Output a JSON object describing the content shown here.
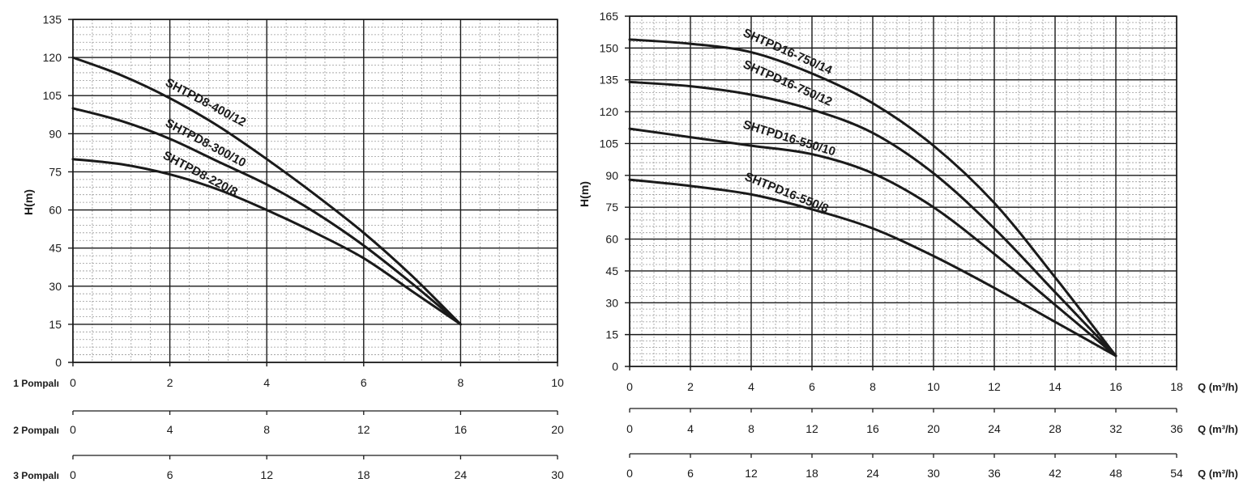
{
  "chart_data": [
    {
      "type": "line",
      "ylabel": "H(m)",
      "ylim": [
        0,
        135
      ],
      "yticks": [
        "0",
        "15",
        "30",
        "45",
        "60",
        "75",
        "90",
        "105",
        "120",
        "135"
      ],
      "xlim": [
        0,
        10
      ],
      "grid": true,
      "flow_axes": [
        {
          "label": "1 Pompalı",
          "ticks": [
            "0",
            "2",
            "4",
            "6",
            "8",
            "10"
          ]
        },
        {
          "label": "2 Pompalı",
          "ticks": [
            "0",
            "4",
            "8",
            "12",
            "16",
            "20"
          ]
        },
        {
          "label": "3 Pompalı",
          "ticks": [
            "0",
            "6",
            "12",
            "18",
            "24",
            "30"
          ]
        }
      ],
      "series": [
        {
          "name": "SHTPD8-400/12",
          "x": [
            0,
            1,
            2,
            3,
            4,
            5,
            6,
            7,
            8
          ],
          "y": [
            120,
            113,
            104,
            93,
            80,
            66,
            51,
            34,
            15
          ]
        },
        {
          "name": "SHTPD8-300/10",
          "x": [
            0,
            1,
            2,
            3,
            4,
            5,
            6,
            7,
            8
          ],
          "y": [
            100,
            95,
            88,
            79,
            70,
            59,
            46,
            31,
            15
          ]
        },
        {
          "name": "SHTPD8-220/8",
          "x": [
            0,
            1,
            2,
            3,
            4,
            5,
            6,
            7,
            8
          ],
          "y": [
            80,
            78,
            74,
            68,
            60,
            51,
            41,
            28,
            15
          ]
        }
      ]
    },
    {
      "type": "line",
      "ylabel": "H(m)",
      "ylim": [
        0,
        165
      ],
      "yticks": [
        "0",
        "15",
        "30",
        "45",
        "60",
        "75",
        "90",
        "105",
        "120",
        "135",
        "150",
        "165"
      ],
      "xlim": [
        0,
        18
      ],
      "grid": true,
      "flow_axes": [
        {
          "label": "Q (m³/h)",
          "ticks": [
            "0",
            "2",
            "4",
            "6",
            "8",
            "10",
            "12",
            "14",
            "16",
            "18"
          ]
        },
        {
          "label": "Q (m³/h)",
          "ticks": [
            "0",
            "4",
            "8",
            "12",
            "16",
            "20",
            "24",
            "28",
            "32",
            "36"
          ]
        },
        {
          "label": "Q (m³/h)",
          "ticks": [
            "0",
            "6",
            "12",
            "18",
            "24",
            "30",
            "36",
            "42",
            "48",
            "54"
          ]
        }
      ],
      "series": [
        {
          "name": "SHTPD16-750/14",
          "x": [
            0,
            2,
            4,
            6,
            8,
            10,
            12,
            14,
            16
          ],
          "y": [
            154,
            152,
            148,
            138,
            124,
            104,
            77,
            42,
            5
          ]
        },
        {
          "name": "SHTPD16-750/12",
          "x": [
            0,
            2,
            4,
            6,
            8,
            10,
            12,
            14,
            16
          ],
          "y": [
            134,
            132,
            128,
            121,
            110,
            91,
            65,
            35,
            5
          ]
        },
        {
          "name": "SHTPD16-550/10",
          "x": [
            0,
            2,
            4,
            6,
            8,
            10,
            12,
            14,
            16
          ],
          "y": [
            112,
            108,
            104,
            100,
            91,
            75,
            53,
            29,
            5
          ]
        },
        {
          "name": "SHTPD16-550/8",
          "x": [
            0,
            2,
            4,
            6,
            8,
            10,
            12,
            14,
            16
          ],
          "y": [
            88,
            85,
            81,
            74,
            65,
            52,
            37,
            21,
            5
          ]
        }
      ]
    }
  ]
}
